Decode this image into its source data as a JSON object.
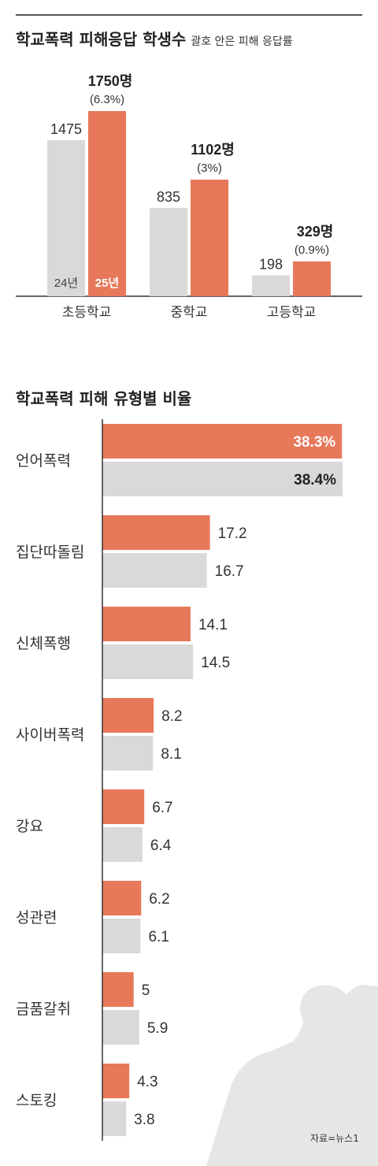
{
  "chart1": {
    "title": "학교폭력 피해응답 학생수",
    "subtitle": "괄호 안은 피해 응답률",
    "series_names": [
      "24년",
      "25년"
    ],
    "colors": {
      "prev": "#d9d9d9",
      "curr": "#e8785a"
    }
  },
  "chart2": {
    "title": "학교폭력 피해 유형별 비율"
  },
  "source": "자료=뉴스1",
  "chart_data": [
    {
      "type": "bar",
      "title": "학교폭력 피해응답 학생수",
      "subtitle": "괄호 안은 피해 응답률",
      "categories": [
        "초등학교",
        "중학교",
        "고등학교"
      ],
      "series": [
        {
          "name": "24년",
          "values": [
            1475,
            835,
            198
          ],
          "labels": [
            "1475",
            "835",
            "198"
          ]
        },
        {
          "name": "25년",
          "values": [
            1750,
            1102,
            329
          ],
          "labels": [
            "1750명",
            "1102명",
            "329명"
          ],
          "rates": [
            "(6.3%)",
            "(3%)",
            "(0.9%)"
          ]
        }
      ],
      "ylim": [
        0,
        1900
      ]
    },
    {
      "type": "bar",
      "orientation": "horizontal",
      "title": "학교폭력 피해 유형별 비율",
      "categories": [
        "언어폭력",
        "집단따돌림",
        "신체폭행",
        "사이버폭력",
        "강요",
        "성관련",
        "금품갈취",
        "스토킹"
      ],
      "series": [
        {
          "values": [
            38.3,
            17.2,
            14.1,
            8.2,
            6.7,
            6.2,
            5,
            4.3
          ],
          "labels": [
            "38.3%",
            "17.2",
            "14.1",
            "8.2",
            "6.7",
            "6.2",
            "5",
            "4.3"
          ]
        },
        {
          "values": [
            38.4,
            16.7,
            14.5,
            8.1,
            6.4,
            6.1,
            5.9,
            3.8
          ],
          "labels": [
            "38.4%",
            "16.7",
            "14.5",
            "8.1",
            "6.4",
            "6.1",
            "5.9",
            "3.8"
          ]
        }
      ],
      "xlim": [
        0,
        38.4
      ]
    }
  ]
}
